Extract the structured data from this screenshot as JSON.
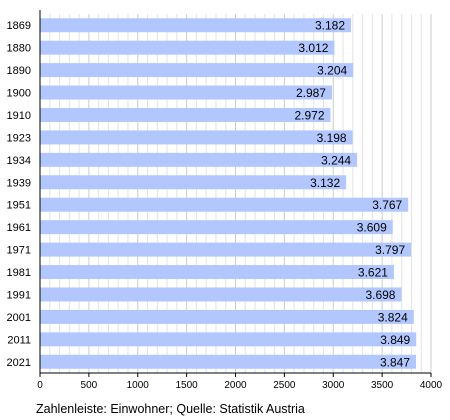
{
  "chart_data": {
    "type": "bar",
    "orientation": "horizontal",
    "categories": [
      "1869",
      "1880",
      "1890",
      "1900",
      "1910",
      "1923",
      "1934",
      "1939",
      "1951",
      "1961",
      "1971",
      "1981",
      "1991",
      "2001",
      "2011",
      "2021"
    ],
    "values": [
      3182,
      3012,
      3204,
      2987,
      2972,
      3198,
      3244,
      3132,
      3767,
      3609,
      3797,
      3621,
      3698,
      3824,
      3849,
      3847
    ],
    "value_labels": [
      "3.182",
      "3.012",
      "3.204",
      "2.987",
      "2.972",
      "3.198",
      "3.244",
      "3.132",
      "3.767",
      "3.609",
      "3.797",
      "3.621",
      "3.698",
      "3.824",
      "3.849",
      "3.847"
    ],
    "x_ticks": [
      "0",
      "500",
      "1000",
      "1500",
      "2000",
      "2500",
      "3000",
      "3500",
      "4000"
    ],
    "xlim": [
      0,
      4000
    ],
    "grid": true,
    "caption": "Zahlenleiste: Einwohner; Quelle: Statistik Austria",
    "colors": {
      "bar": "#b3c7ff",
      "grid": "#cccccc",
      "axis": "#000000"
    }
  }
}
